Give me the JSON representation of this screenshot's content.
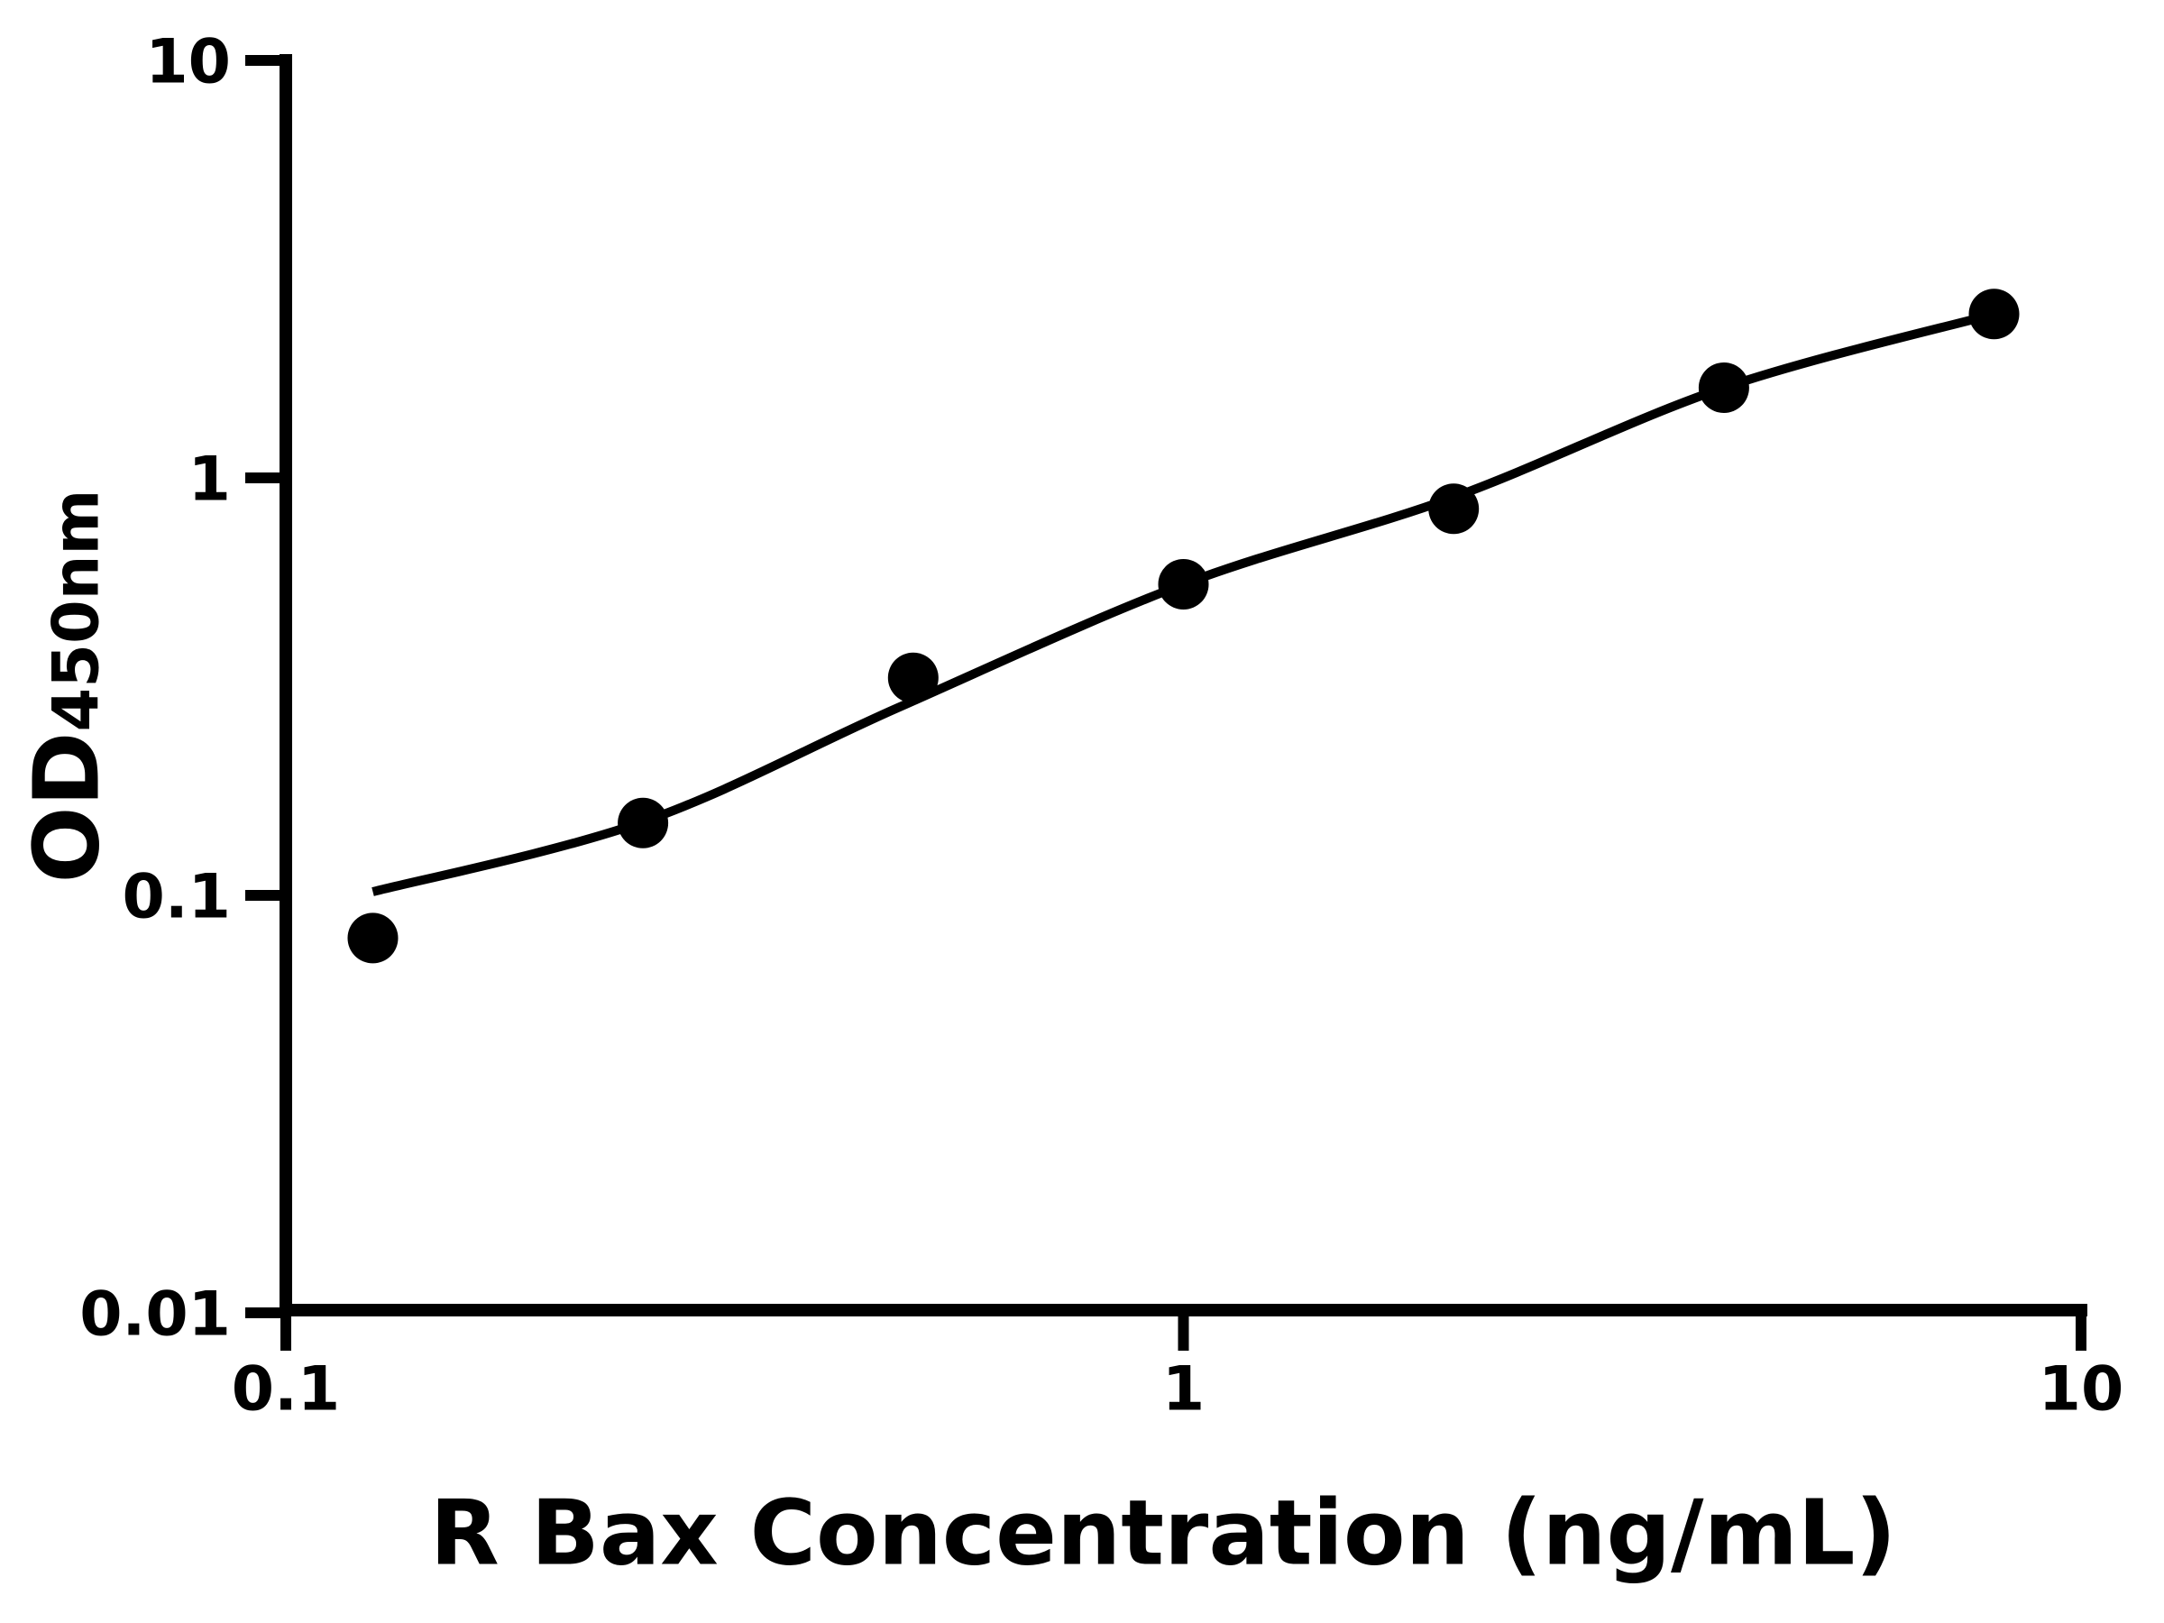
{
  "colors": {
    "foreground": "#000000",
    "background": "#ffffff"
  },
  "chart_data": {
    "type": "scatter",
    "title": "",
    "xlabel": "R Bax Concentration (ng/mL)",
    "ylabel": "OD",
    "ylabel_subscript": "450nm",
    "x_scale": "log",
    "y_scale": "log",
    "xlim": [
      0.1,
      10
    ],
    "ylim": [
      0.01,
      10
    ],
    "grid": false,
    "legend": "none",
    "x_ticks": [
      {
        "value": 0.1,
        "label": "0.1"
      },
      {
        "value": 1,
        "label": "1"
      },
      {
        "value": 10,
        "label": "10"
      }
    ],
    "y_ticks": [
      {
        "value": 0.01,
        "label": "0.01"
      },
      {
        "value": 0.1,
        "label": "0.1"
      },
      {
        "value": 1,
        "label": "1"
      },
      {
        "value": 10,
        "label": "10"
      }
    ],
    "series": [
      {
        "name": "standard-points",
        "type": "scatter",
        "marker": "filled-circle",
        "color": "#000000",
        "points": [
          {
            "x": 0.125,
            "y": 0.079
          },
          {
            "x": 0.25,
            "y": 0.149
          },
          {
            "x": 0.5,
            "y": 0.332
          },
          {
            "x": 1,
            "y": 0.556
          },
          {
            "x": 2,
            "y": 0.843
          },
          {
            "x": 4,
            "y": 1.644
          },
          {
            "x": 8,
            "y": 2.468
          }
        ]
      },
      {
        "name": "fit-curve",
        "type": "line",
        "color": "#000000",
        "points": [
          {
            "x": 0.125,
            "y": 0.102
          },
          {
            "x": 0.25,
            "y": 0.15
          },
          {
            "x": 0.48,
            "y": 0.281
          },
          {
            "x": 1.0,
            "y": 0.556
          },
          {
            "x": 2.0,
            "y": 0.899
          },
          {
            "x": 4.0,
            "y": 1.644
          },
          {
            "x": 8.0,
            "y": 2.468
          }
        ]
      }
    ]
  }
}
